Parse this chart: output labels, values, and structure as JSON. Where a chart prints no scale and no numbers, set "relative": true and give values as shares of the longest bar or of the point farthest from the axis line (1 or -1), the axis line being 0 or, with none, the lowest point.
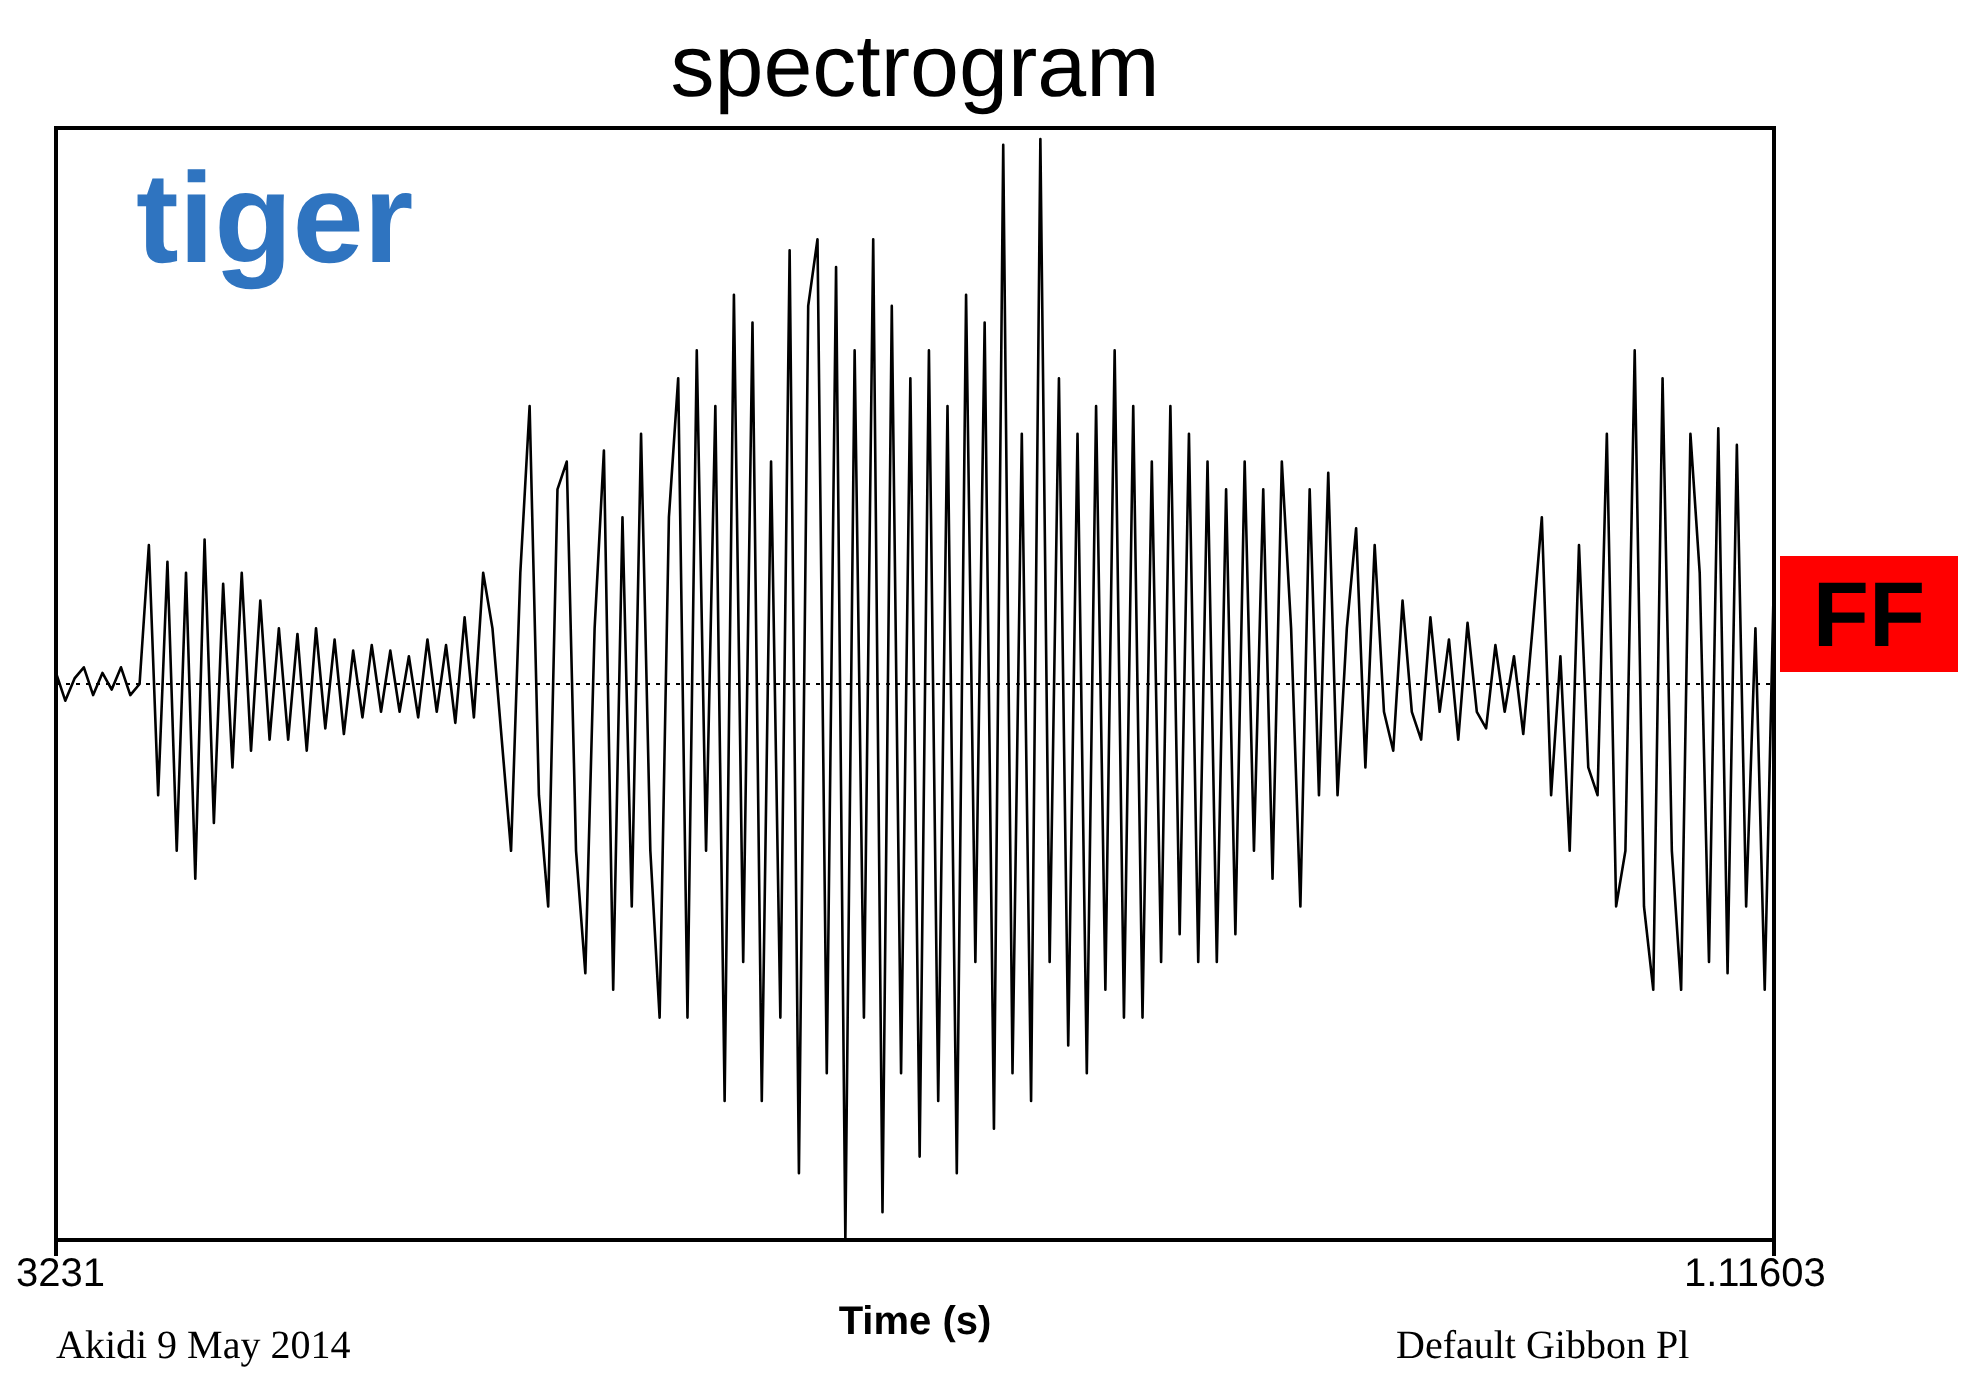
{
  "chart_data": {
    "type": "line",
    "title": "spectrogram",
    "xlabel": "Time (s)",
    "relative": true,
    "legend": false,
    "marker": "none",
    "categories": [
      null,
      null,
      null,
      null,
      null,
      null,
      null,
      null,
      null,
      null,
      null,
      null,
      null,
      null,
      null,
      null,
      null,
      null,
      null,
      null,
      null,
      null,
      null,
      null,
      null,
      null,
      null,
      null,
      null,
      null,
      null,
      null,
      null,
      null,
      null,
      null,
      null,
      null,
      null,
      null,
      null,
      null,
      null,
      null,
      null,
      null,
      null,
      null,
      null,
      null,
      null,
      null,
      null,
      null,
      null,
      null,
      null,
      null,
      null,
      null,
      null,
      null,
      null,
      null,
      null,
      null,
      null,
      null,
      null,
      null,
      null,
      null,
      null,
      null,
      null,
      null,
      null,
      null,
      null,
      null,
      null,
      null,
      null,
      null,
      null,
      null,
      null,
      null,
      null,
      null,
      null,
      null,
      null,
      null,
      null,
      null,
      null,
      null,
      null,
      null,
      null,
      null,
      null,
      null,
      null,
      null,
      null,
      null,
      null,
      null,
      null,
      null,
      null,
      null,
      null,
      null,
      null,
      null,
      null,
      null,
      null,
      null,
      null,
      null,
      null,
      null,
      null,
      null,
      null,
      null,
      null,
      null,
      null,
      null,
      null,
      null,
      null,
      null,
      null,
      null,
      null,
      null,
      null,
      null,
      null,
      null,
      null,
      null,
      null,
      null,
      null,
      null,
      null,
      null,
      null,
      null,
      null,
      null,
      null,
      null,
      null,
      null,
      null,
      null,
      null,
      null,
      null,
      null,
      null,
      null,
      null,
      null,
      null,
      null,
      null,
      null,
      null,
      null,
      null,
      null,
      null,
      null,
      null,
      null,
      null,
      null
    ],
    "series": [
      {
        "color": "#000000",
        "values": [
          0.02,
          -0.03,
          0.01,
          0.03,
          -0.02,
          0.02,
          -0.01,
          0.03,
          -0.02,
          0.0,
          0.25,
          -0.2,
          0.22,
          -0.3,
          0.2,
          -0.35,
          0.26,
          -0.25,
          0.18,
          -0.15,
          0.2,
          -0.12,
          0.15,
          -0.1,
          0.1,
          -0.1,
          0.09,
          -0.12,
          0.1,
          -0.08,
          0.08,
          -0.09,
          0.06,
          -0.06,
          0.07,
          -0.05,
          0.06,
          -0.05,
          0.05,
          -0.06,
          0.08,
          -0.05,
          0.07,
          -0.07,
          0.12,
          -0.06,
          0.2,
          0.1,
          -0.1,
          -0.3,
          0.2,
          0.5,
          -0.2,
          -0.4,
          0.35,
          0.4,
          -0.3,
          -0.52,
          0.1,
          0.42,
          -0.55,
          0.3,
          -0.4,
          0.45,
          -0.3,
          -0.6,
          0.3,
          0.55,
          -0.6,
          0.6,
          -0.3,
          0.5,
          -0.75,
          0.7,
          -0.5,
          0.65,
          -0.75,
          0.4,
          -0.6,
          0.78,
          -0.88,
          0.68,
          0.8,
          -0.7,
          0.75,
          -1.0,
          0.6,
          -0.6,
          0.8,
          -0.95,
          0.68,
          -0.7,
          0.55,
          -0.85,
          0.6,
          -0.75,
          0.5,
          -0.88,
          0.7,
          -0.5,
          0.65,
          -0.8,
          0.97,
          -0.7,
          0.45,
          -0.75,
          0.98,
          -0.5,
          0.55,
          -0.65,
          0.45,
          -0.7,
          0.5,
          -0.55,
          0.6,
          -0.6,
          0.5,
          -0.6,
          0.4,
          -0.5,
          0.5,
          -0.45,
          0.45,
          -0.5,
          0.4,
          -0.5,
          0.35,
          -0.45,
          0.4,
          -0.3,
          0.35,
          -0.35,
          0.4,
          0.1,
          -0.4,
          0.35,
          -0.2,
          0.38,
          -0.2,
          0.1,
          0.28,
          -0.15,
          0.25,
          -0.05,
          -0.12,
          0.15,
          -0.05,
          -0.1,
          0.12,
          -0.05,
          0.08,
          -0.1,
          0.11,
          -0.05,
          -0.08,
          0.07,
          -0.05,
          0.05,
          -0.09,
          0.1,
          0.3,
          -0.2,
          0.05,
          -0.3,
          0.25,
          -0.15,
          -0.2,
          0.45,
          -0.4,
          -0.3,
          0.6,
          -0.4,
          -0.55,
          0.55,
          -0.3,
          -0.55,
          0.45,
          0.2,
          -0.5,
          0.46,
          -0.52,
          0.43,
          -0.4,
          0.1,
          -0.55,
          0.2
        ]
      }
    ],
    "ref_lines": [
      {
        "axis": "y",
        "value": 0,
        "line_style": "dotted"
      }
    ],
    "annotations": [
      "tiger",
      "FF",
      "3231",
      "1.11603",
      "Akidi 9 May 2014",
      "Default Gibbon Pl"
    ]
  }
}
